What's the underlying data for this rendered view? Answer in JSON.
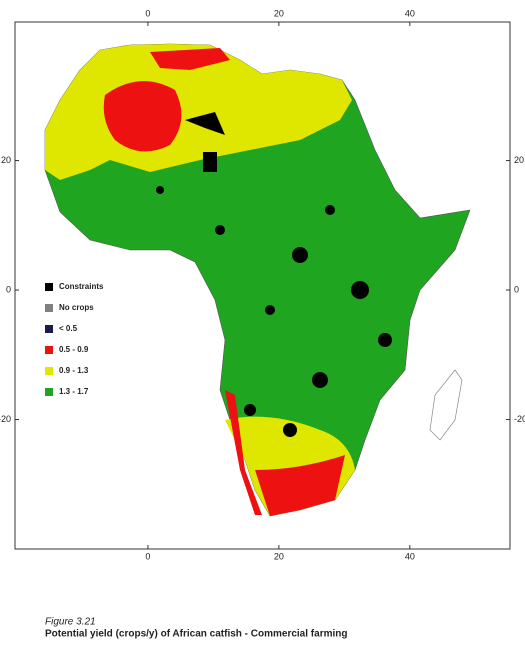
{
  "map": {
    "lon_range": [
      -20.3,
      55.3
    ],
    "lat_range": [
      41.4,
      -40
    ],
    "lon_ticks": [
      0,
      20,
      40
    ],
    "lat_ticks": [
      20,
      0,
      -20
    ],
    "legend": [
      {
        "label": "Constraints",
        "color": "#000000"
      },
      {
        "label": "No crops",
        "color": "#808080"
      },
      {
        "label": "< 0.5",
        "color": "#1b1b4a"
      },
      {
        "label": "0.5 - 0.9",
        "color": "#ee1111"
      },
      {
        "label": "0.9 - 1.3",
        "color": "#dfe600"
      },
      {
        "label": "1.3 - 1.7",
        "color": "#1fa51f"
      }
    ]
  },
  "caption": {
    "figure": "Figure 3.21",
    "title": "Potential yield (crops/y) of African catfish - Commercial farming"
  }
}
